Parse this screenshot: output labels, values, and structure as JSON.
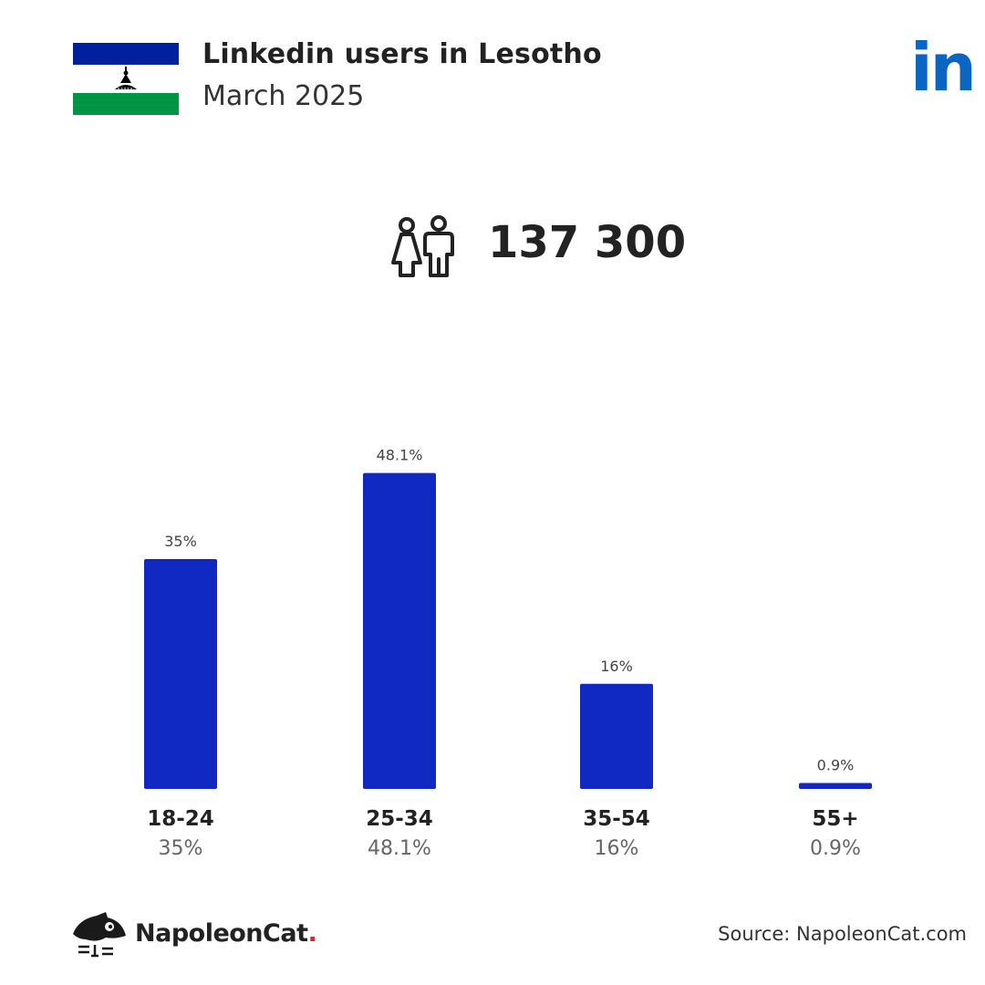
{
  "header": {
    "title": "Linkedin users in Lesotho",
    "subtitle": "March 2025"
  },
  "total_users": "137 300",
  "icons": {
    "flag": "lesotho-flag-icon",
    "brand": "linkedin-logo-icon",
    "people": "people-icon",
    "footer": "napoleoncat-logo-icon"
  },
  "brand_logo_text": "in",
  "colors": {
    "bar": "#1029c2",
    "linkedin": "#0a66c2",
    "flag_blue": "#00209f",
    "flag_green": "#009543"
  },
  "chart_data": {
    "type": "bar",
    "categories": [
      "18-24",
      "25-34",
      "35-54",
      "55+"
    ],
    "values": [
      35,
      48.1,
      16,
      0.9
    ],
    "value_labels": [
      "35%",
      "48.1%",
      "16%",
      "0.9%"
    ],
    "ylim": [
      0,
      50
    ],
    "grid": false
  },
  "footer": {
    "brand": "NapoleonCat",
    "brand_dot": ".",
    "source": "Source: NapoleonCat.com"
  }
}
